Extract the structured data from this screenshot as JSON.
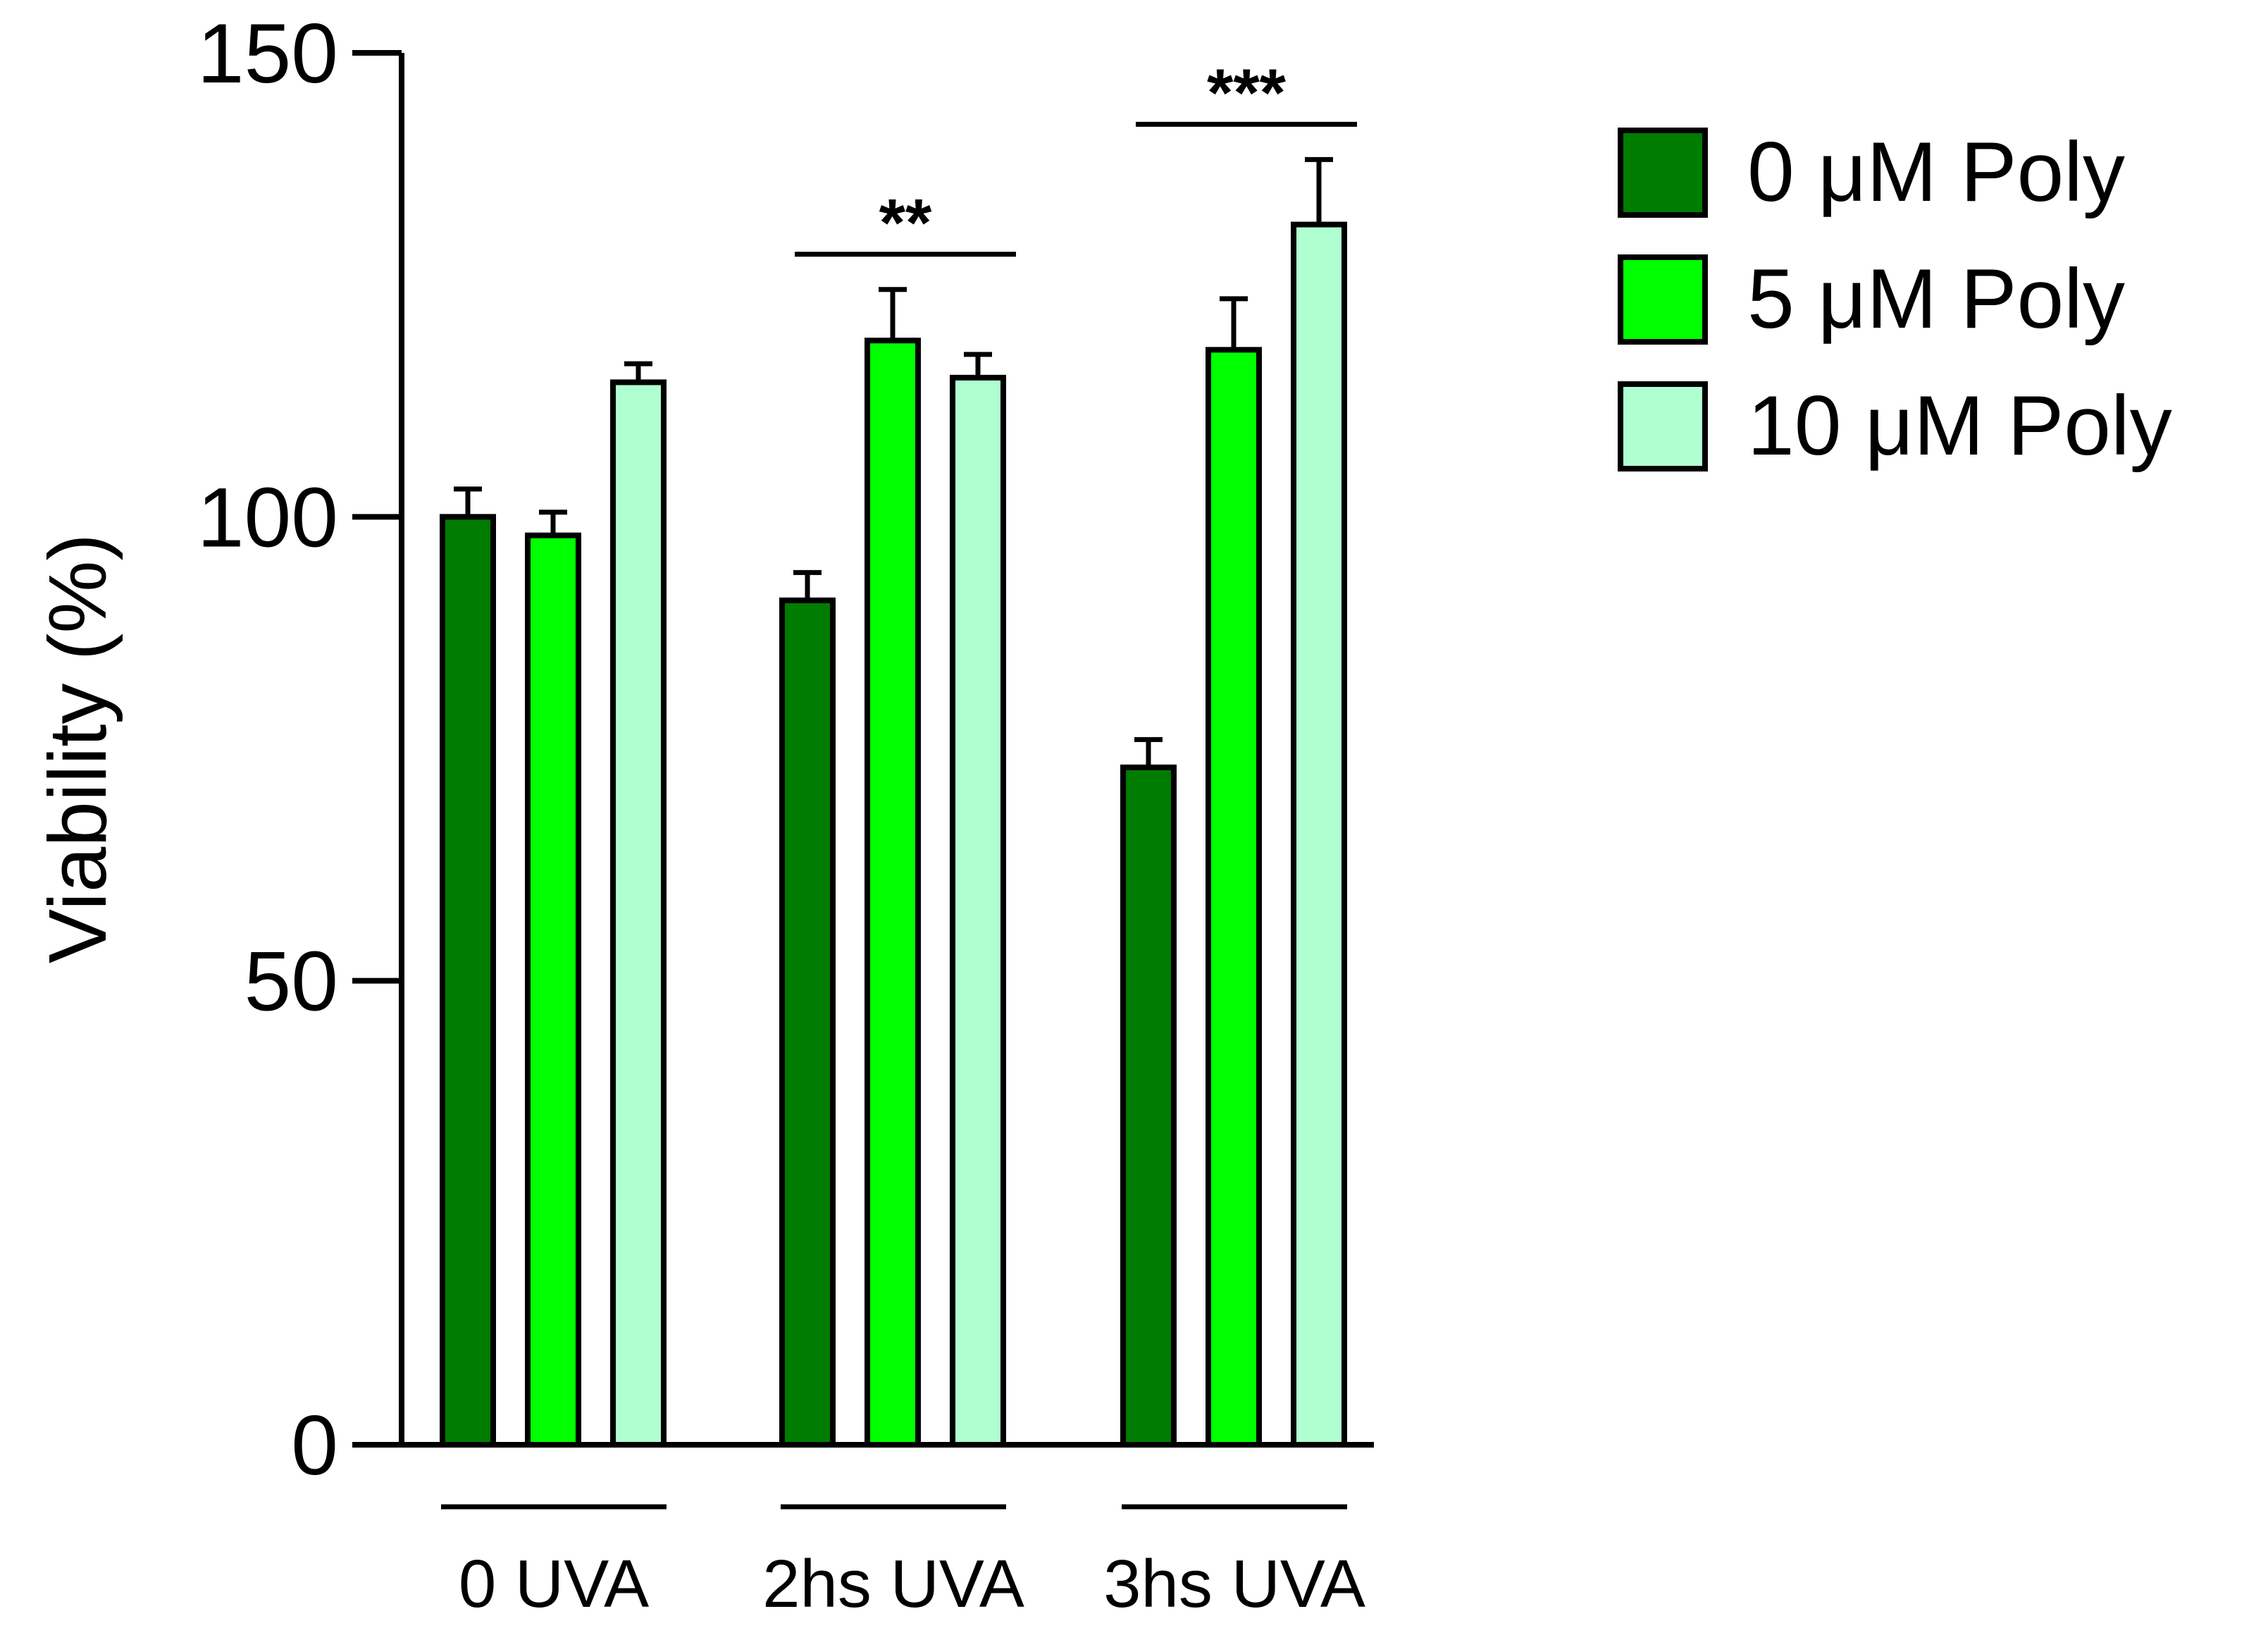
{
  "chart_data": {
    "type": "bar",
    "title": "",
    "xlabel": "",
    "ylabel": "Viability (%)",
    "ylim": [
      0,
      150
    ],
    "yticks": [
      "0",
      "50",
      "100",
      "150"
    ],
    "ytick_values": [
      0,
      50,
      100,
      150
    ],
    "categories": [
      "0 UVA",
      "2hs UVA",
      "3hs UVA"
    ],
    "grid": false,
    "legend_position": "top-right",
    "series": [
      {
        "name": "0 μM Poly",
        "color": "#007C00",
        "values": [
          100,
          91,
          73
        ],
        "errors": [
          3,
          3,
          3
        ]
      },
      {
        "name": "5 μM Poly",
        "color": "#00FF00",
        "values": [
          98,
          119,
          118
        ],
        "errors": [
          2.5,
          5.5,
          5.5
        ]
      },
      {
        "name": "10 μM Poly",
        "color": "#AFFFD0",
        "values": [
          114.5,
          115,
          131.5
        ],
        "errors": [
          2,
          2.5,
          7
        ]
      }
    ],
    "annotations": [
      {
        "group": "2hs UVA",
        "label": "**"
      },
      {
        "group": "3hs UVA",
        "label": "***"
      }
    ]
  }
}
